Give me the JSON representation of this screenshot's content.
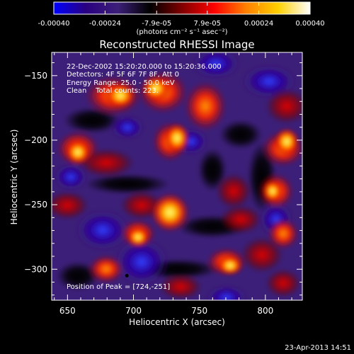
{
  "colorbar": {
    "tick_labels": [
      "-0.00040",
      "-0.00024",
      "-7.9e-05",
      "7.9e-05",
      "0.00024",
      "0.00040"
    ],
    "tick_values": [
      -0.0004,
      -0.00024,
      -7.9e-05,
      7.9e-05,
      0.00024,
      0.0004
    ],
    "range": [
      -0.0004,
      0.0004
    ],
    "units_label": "(photons cm⁻² s⁻¹ asec⁻²)",
    "gradient": [
      "#0000ff",
      "#2a0080",
      "#3c1f78",
      "#000000",
      "#800000",
      "#ff0000",
      "#ff8000",
      "#ffd000",
      "#ffffff"
    ]
  },
  "plot": {
    "title": "Reconstructed RHESSI Image",
    "xlabel": "Heliocentric X (arcsec)",
    "ylabel": "Heliocentric Y (arcsec)",
    "x_range": [
      638,
      828
    ],
    "y_range": [
      -324,
      -132
    ],
    "x_ticks": [
      650,
      700,
      750,
      800
    ],
    "x_tick_labels": [
      "650",
      "700",
      "750",
      "800"
    ],
    "y_ticks": [
      -300,
      -250,
      -200,
      -150
    ],
    "y_tick_labels": [
      "−300",
      "−250",
      "−200",
      "−150"
    ],
    "annotations": [
      "22-Dec-2002 15:20:20.000 to 15:20:36.000",
      "Detectors: 4F 5F 6F 7F 8F, Att 0",
      "Energy Range: 25.0 - 50.0 keV",
      "Clean    Total counts: 223."
    ],
    "peak_label": "Position of Peak = [724,-251]",
    "peak": [
      724,
      -251
    ]
  },
  "footer": {
    "timestamp": "23-Apr-2013 14:51"
  }
}
